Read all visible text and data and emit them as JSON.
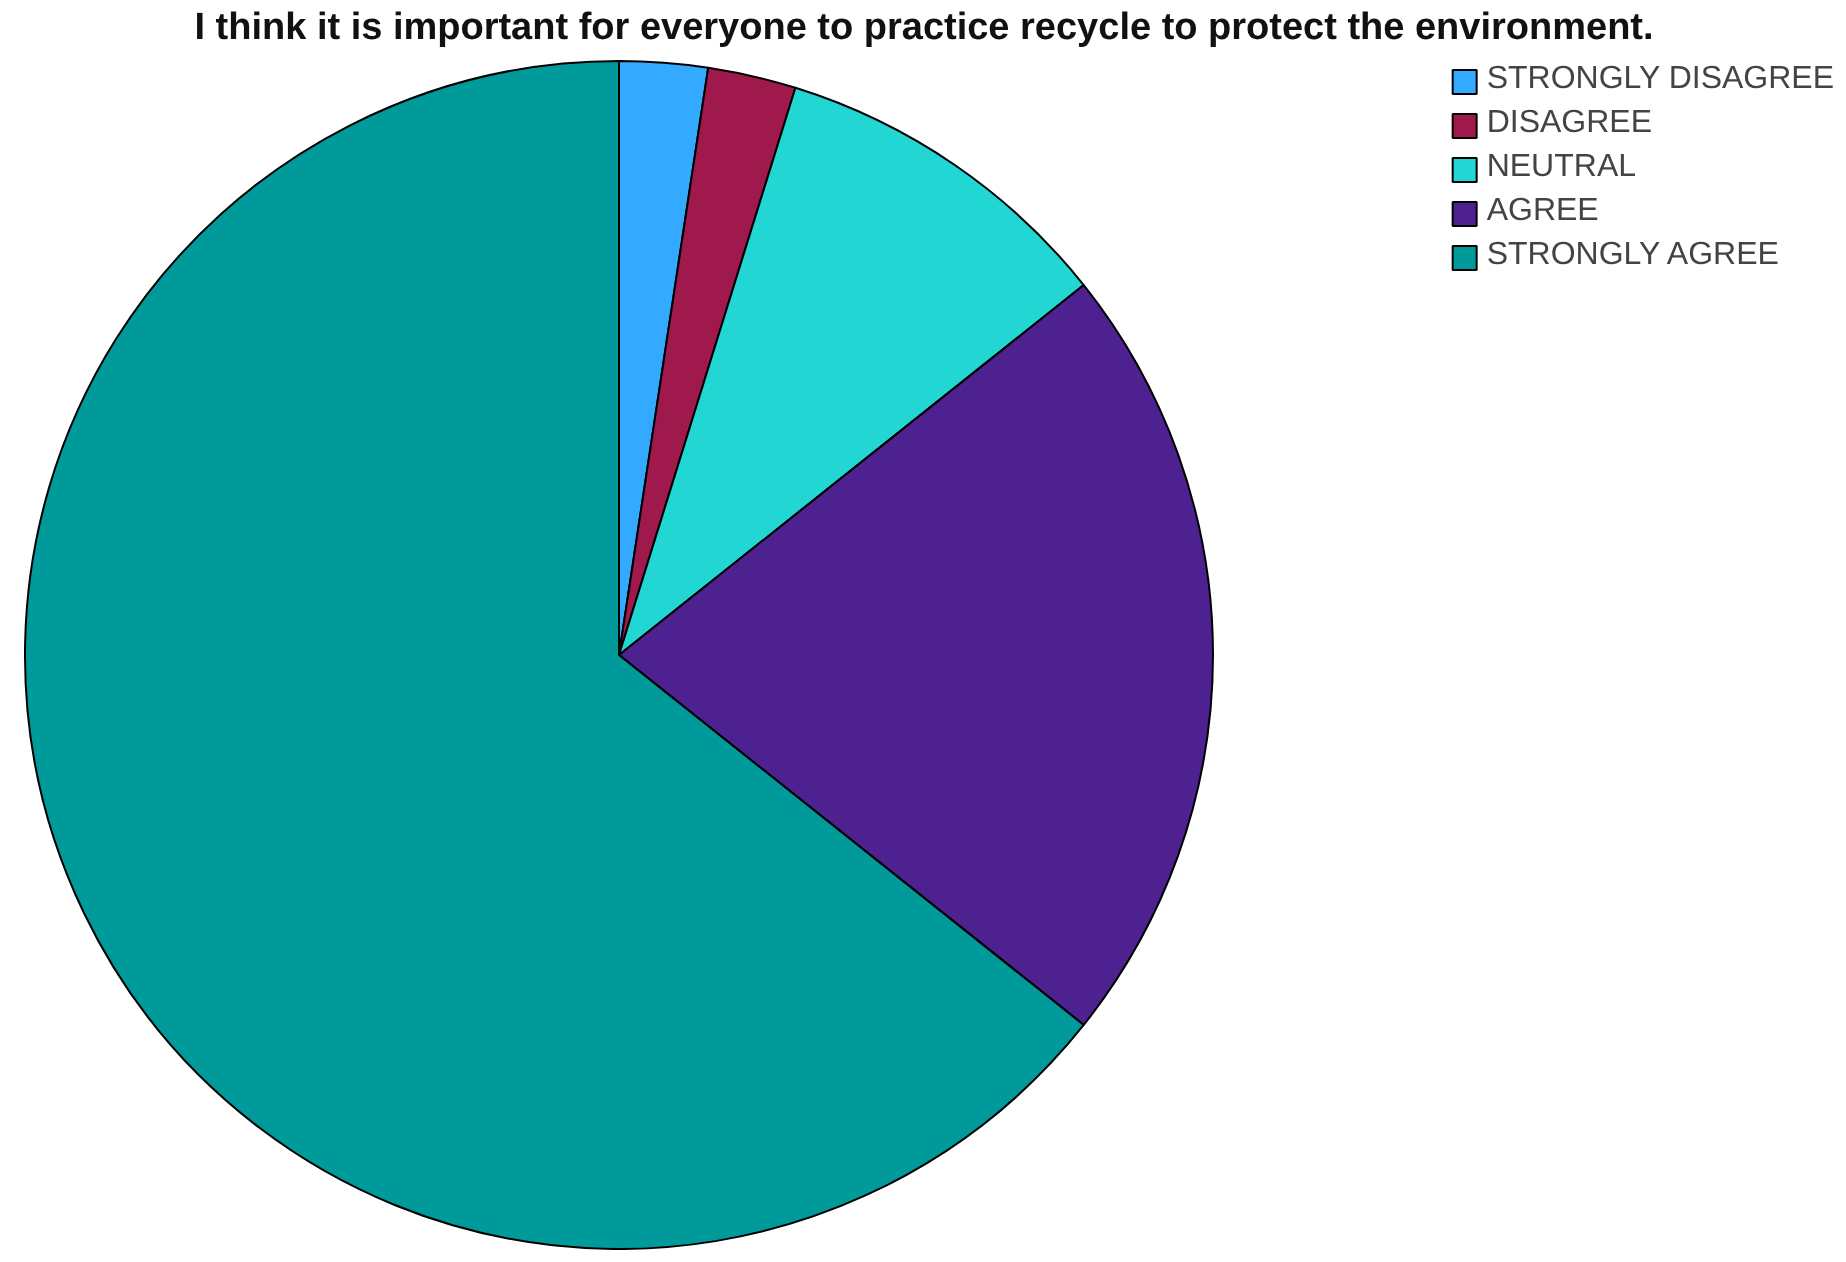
{
  "chart_data": {
    "type": "pie",
    "title": "I think it is important for everyone to practice recycle to protect the environment.",
    "categories": [
      "STRONGLY DISAGREE",
      "DISAGREE",
      "NEUTRAL",
      "AGREE",
      "STRONGLY AGREE"
    ],
    "values": [
      2.4,
      2.4,
      9.5,
      21.4,
      64.3
    ],
    "colors": [
      "#33aaff",
      "#a0194c",
      "#22d6d3",
      "#4e2190",
      "#009a9a"
    ],
    "legend": "top right"
  }
}
